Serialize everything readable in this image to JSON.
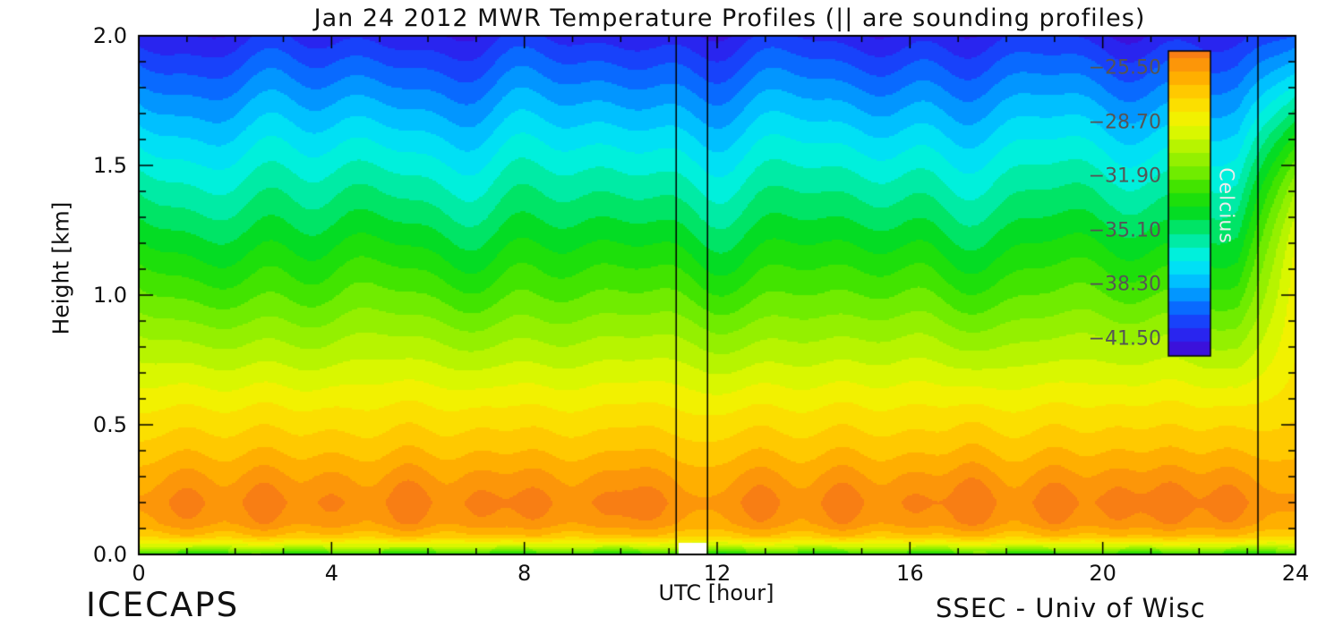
{
  "title": "Jan 24 2012 MWR Temperature Profiles (|| are sounding profiles)",
  "footer": {
    "left_logo": "ICECAPS",
    "right_credit": "SSEC - Univ of Wisc"
  },
  "chart_data": {
    "type": "heatmap",
    "title": "Jan 24 2012 MWR Temperature Profiles (|| are sounding profiles)",
    "xlabel": "UTC [hour]",
    "ylabel": "Height [km]",
    "xlim": [
      0,
      24
    ],
    "ylim": [
      0.0,
      2.0
    ],
    "x_ticks": [
      0,
      4,
      8,
      12,
      16,
      20,
      24
    ],
    "x_minor_tick_interval": 1,
    "y_ticks": [
      "0.0",
      "0.5",
      "1.0",
      "1.5",
      "2.0"
    ],
    "y_minor_tick_interval": 0.1,
    "colorbar": {
      "label": "Celcius",
      "tick_labels": [
        "-25.50",
        "-28.70",
        "-31.90",
        "-35.10",
        "-38.30",
        "-41.50"
      ],
      "range_celsius": [
        -42.5,
        -24.5
      ],
      "color_stops": [
        [
          0.0,
          "#4408d0"
        ],
        [
          0.04,
          "#3318e4"
        ],
        [
          0.09,
          "#2030f8"
        ],
        [
          0.15,
          "#0a64ff"
        ],
        [
          0.21,
          "#00a0ff"
        ],
        [
          0.27,
          "#00d8ff"
        ],
        [
          0.33,
          "#00f0e0"
        ],
        [
          0.4,
          "#00e88a"
        ],
        [
          0.46,
          "#00dc28"
        ],
        [
          0.53,
          "#28e000"
        ],
        [
          0.6,
          "#70ec00"
        ],
        [
          0.68,
          "#b0f400"
        ],
        [
          0.76,
          "#eef800"
        ],
        [
          0.84,
          "#ffd800"
        ],
        [
          0.92,
          "#ffaa00"
        ],
        [
          1.0,
          "#f87e14"
        ]
      ]
    },
    "contour_interval_celsius": 0.8,
    "sounding_times_utc": [
      11.15,
      11.8,
      23.22
    ],
    "data_gap": {
      "t_start": 11.2,
      "t_end": 11.78,
      "height_top_km": 0.045
    },
    "mean_profile": {
      "heights_km": [
        0.0,
        0.03,
        0.07,
        0.12,
        0.2,
        0.3,
        0.42,
        0.55,
        0.7,
        0.85,
        1.0,
        1.15,
        1.3,
        1.45,
        1.6,
        1.75,
        1.9,
        2.0
      ],
      "temps_c": [
        -33.5,
        -30.0,
        -27.2,
        -26.0,
        -25.6,
        -26.2,
        -27.2,
        -28.2,
        -29.5,
        -30.8,
        -32.2,
        -33.5,
        -34.8,
        -36.0,
        -37.3,
        -38.7,
        -40.2,
        -41.3
      ]
    },
    "surface_warm_pulses": [
      {
        "t": 1.0,
        "amp": 1.0
      },
      {
        "t": 2.6,
        "amp": 1.2
      },
      {
        "t": 4.0,
        "amp": 0.8
      },
      {
        "t": 5.6,
        "amp": 1.3
      },
      {
        "t": 7.1,
        "amp": 0.9
      },
      {
        "t": 8.2,
        "amp": 1.0
      },
      {
        "t": 9.7,
        "amp": 0.8
      },
      {
        "t": 10.6,
        "amp": 1.0
      },
      {
        "t": 12.9,
        "amp": 1.1
      },
      {
        "t": 14.6,
        "amp": 1.2
      },
      {
        "t": 16.1,
        "amp": 0.8
      },
      {
        "t": 17.3,
        "amp": 1.4
      },
      {
        "t": 19.0,
        "amp": 1.2
      },
      {
        "t": 20.3,
        "amp": 1.0
      },
      {
        "t": 21.4,
        "amp": 1.2
      },
      {
        "t": 22.6,
        "amp": 1.1
      }
    ],
    "pulse_width_hours": 0.55,
    "pulse_center_height_km": 0.18,
    "pulse_height_sigma_km": 0.16,
    "late_day_warming": {
      "t_start": 22.8,
      "ramp_hours": 1.2,
      "max_amp_c": 5.0,
      "center_height_km": 1.3,
      "height_sigma_km": 0.55
    }
  }
}
